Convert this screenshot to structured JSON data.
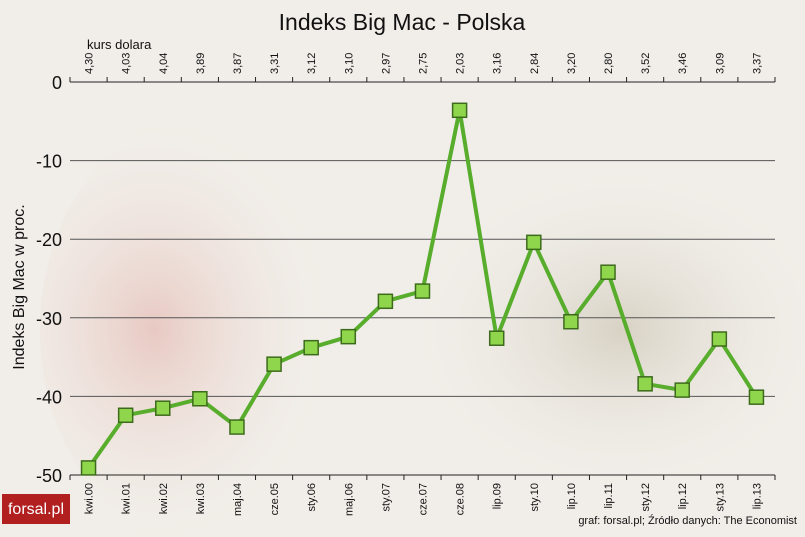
{
  "chart_data": {
    "type": "line",
    "title": "Indeks Big Mac - Polska",
    "ylabel": "Indeks Big Mac w proc.",
    "top_axis_label": "kurs dolara",
    "top_labels": [
      "4,30",
      "4,03",
      "4,04",
      "3,89",
      "3,87",
      "3,31",
      "3,12",
      "3,10",
      "2,97",
      "2,75",
      "2,03",
      "3,16",
      "2,84",
      "3,20",
      "2,80",
      "3,52",
      "3,46",
      "3,09",
      "3,37"
    ],
    "categories": [
      "kwi.00",
      "kwi.01",
      "kwi.02",
      "kwi.03",
      "maj.04",
      "cze.05",
      "sty.06",
      "maj.06",
      "sty.07",
      "cze.07",
      "cze.08",
      "lip.09",
      "sty.10",
      "lip.10",
      "lip.11",
      "sty.12",
      "lip.12",
      "sty.13",
      "lip.13"
    ],
    "values": [
      -49.1,
      -42.4,
      -41.5,
      -40.3,
      -43.9,
      -35.9,
      -33.8,
      -32.4,
      -27.9,
      -26.6,
      -3.6,
      -32.6,
      -20.4,
      -30.5,
      -24.2,
      -38.4,
      -39.2,
      -32.7,
      -40.1
    ],
    "color": "#58ad2c",
    "marker_color": "#8fd64c",
    "ylim": [
      -50,
      0
    ],
    "yticks": [
      0,
      -10,
      -20,
      -30,
      -40,
      -50
    ],
    "grid": true
  },
  "source": "graf: forsal.pl;  Źródło danych: The Economist",
  "logo": "forsal.pl"
}
